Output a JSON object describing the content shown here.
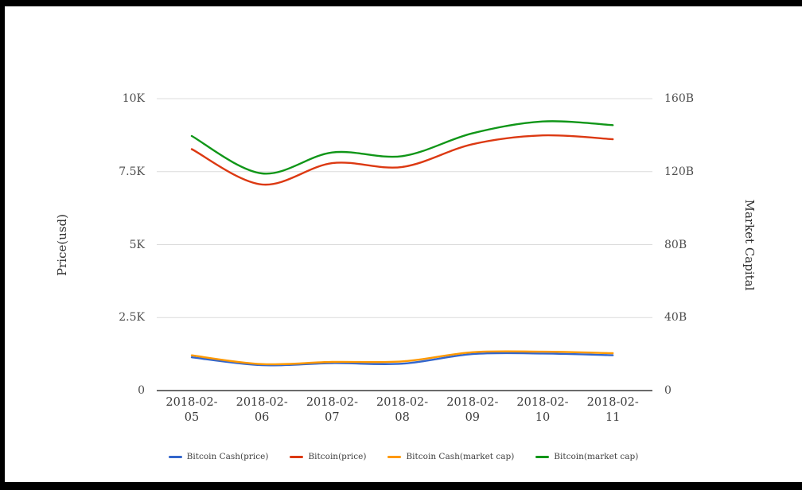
{
  "frame": {
    "background": "#ffffff",
    "border_color": "#000000"
  },
  "chart_data": {
    "type": "line",
    "smooth": true,
    "grid": "horizontal",
    "legend_position": "bottom",
    "x": [
      "2018-02-05",
      "2018-02-06",
      "2018-02-07",
      "2018-02-08",
      "2018-02-09",
      "2018-02-10",
      "2018-02-11"
    ],
    "left_axis": {
      "label": "Price(usd)",
      "range": [
        0,
        10000
      ],
      "tick_labels": [
        "0",
        "2.5K",
        "5K",
        "7.5K",
        "10K"
      ]
    },
    "right_axis": {
      "label": "Market Capital",
      "range_billions": [
        0,
        160
      ],
      "tick_labels": [
        "0",
        "40B",
        "80B",
        "120B",
        "160B"
      ]
    },
    "series": [
      {
        "name": "Bitcoin Cash(price)",
        "axis": "left",
        "unit": "USD",
        "color": "#3366cc",
        "values": [
          1140,
          870,
          940,
          920,
          1250,
          1270,
          1210
        ]
      },
      {
        "name": "Bitcoin(price)",
        "axis": "left",
        "unit": "USD",
        "color": "#dc3912",
        "values": [
          8270,
          7060,
          7790,
          7660,
          8440,
          8740,
          8610
        ]
      },
      {
        "name": "Bitcoin Cash(market cap)",
        "axis": "right",
        "unit": "billion USD",
        "color": "#ff9900",
        "values": [
          19.3,
          14.5,
          15.7,
          16.0,
          21.0,
          21.3,
          20.5
        ]
      },
      {
        "name": "Bitcoin(market cap)",
        "axis": "right",
        "unit": "billion USD",
        "color": "#109618",
        "values": [
          139.5,
          119.0,
          130.5,
          128.5,
          141.0,
          147.5,
          145.5
        ]
      }
    ],
    "colors": {
      "grid_line": "#dcdcdc",
      "axis_line": "#3a3a3a",
      "tick_text": "#4d4d4d"
    }
  }
}
